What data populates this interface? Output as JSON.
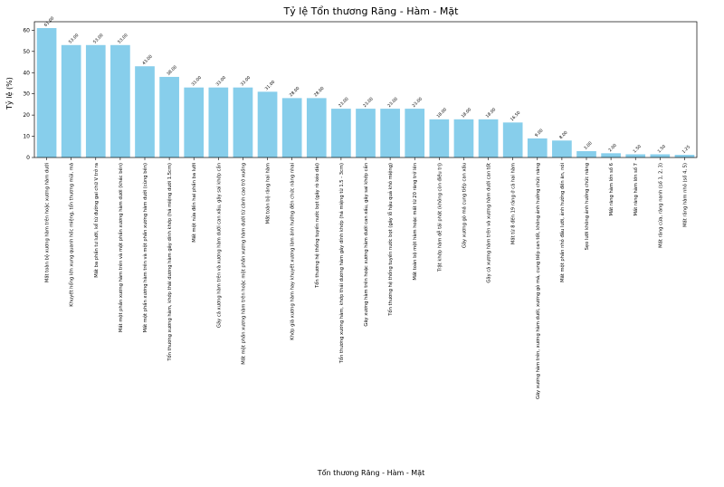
{
  "chart_data": {
    "type": "bar",
    "title": "Tỷ lệ Tổn thương Răng - Hàm - Mặt",
    "xlabel": "Tổn thương Răng - Hàm - Mặt",
    "ylabel": "Tỷ lệ (%)",
    "ylim": [
      0,
      64
    ],
    "yticks": [
      "0",
      "10",
      "20",
      "30",
      "40",
      "50",
      "60"
    ],
    "bar_color": "#87CEEB",
    "grid": false,
    "categories": [
      "Mất toàn bộ xương hàm trên hoặc xương hàm dưới",
      "Khuyết hổng lớn xung quanh hốc miệng, tổn thương mũi, má",
      "Mất ba phần tư lưỡi, kể từ đường gai chữ V trở ra",
      "Mất một phần xương hàm trên và một phần xương hàm dưới (khác bên)",
      "Mất một phần xương hàm trên và một phần xương hàm dưới (cùng bên)",
      "Tổn thương xương hàm, khớp thái dương hàm gây dính khớp (há miệng dưới 1.5cm)",
      "Mất một nửa đến hai phần ba lưỡi",
      "Gãy cả xương hàm trên và xương hàm dưới can xấu, gây sai khớp cắn",
      "Mất một phần xương hàm trên hoặc một phần xương hàm dưới từ cành cao trở xuống",
      "Mất toàn bộ răng hai hàm",
      "Khớp giả xương hàm hay khuyết xương làm ảnh hưởng đến chức năng nhai",
      "Tổn thương hệ thống tuyến nước bọt (gây rò kéo dài)",
      "Tổn thương xương hàm, khớp thái dương hàm gây dính khớp (há miệng từ 1.5 - 3cm)",
      "Gãy xương hàm trên hoặc xương hàm dưới can xấu, gây sai khớp cắn",
      "Tổn thương hệ thống tuyến nước bọt (gây lỗ hậu quả khô miệng)",
      "Mất toàn bộ một hàm hoặc mất từ 20 răng trở lên",
      "Trật khớp hàm dễ tái phát (không còn điều trị)",
      "Gãy xương gò má cung tiếp can xấu",
      "Gãy cả xương hàm trên và xương hàm dưới can tốt",
      "Mất từ 8 đến 19 răng ở cả hai hàm",
      "Gãy xương hàm trên, xương hàm dưới, xương gò má, cung tiếp can tốt, không ảnh hưởng chức năng",
      "Mất một phần nhỏ đầu lưỡi, ảnh hưởng đến ăn, nói",
      "Sẹo lưỡi không ảnh hưởng chức năng",
      "Mất răng hàm lớn số 6",
      "Mất răng hàm lớn số 7",
      "Mất răng cửa, răng nanh (số 1, 2, 3)",
      "Mất răng hàm nhỏ (số 4, 5)"
    ],
    "values": [
      61,
      53,
      53,
      53,
      43,
      38,
      33,
      33,
      33,
      31,
      28,
      28,
      23,
      23,
      23,
      23,
      18,
      18,
      18,
      16.5,
      9,
      8,
      3,
      2,
      1.5,
      1.5,
      1.25
    ],
    "data_labels": [
      "61.00",
      "53.00",
      "53.00",
      "53.00",
      "43.00",
      "38.00",
      "33.00",
      "33.00",
      "33.00",
      "31.00",
      "28.00",
      "28.00",
      "23.00",
      "23.00",
      "23.00",
      "23.00",
      "18.00",
      "18.00",
      "18.00",
      "16.50",
      "9.00",
      "8.00",
      "3.00",
      "2.00",
      "1.50",
      "1.50",
      "1.25"
    ]
  }
}
